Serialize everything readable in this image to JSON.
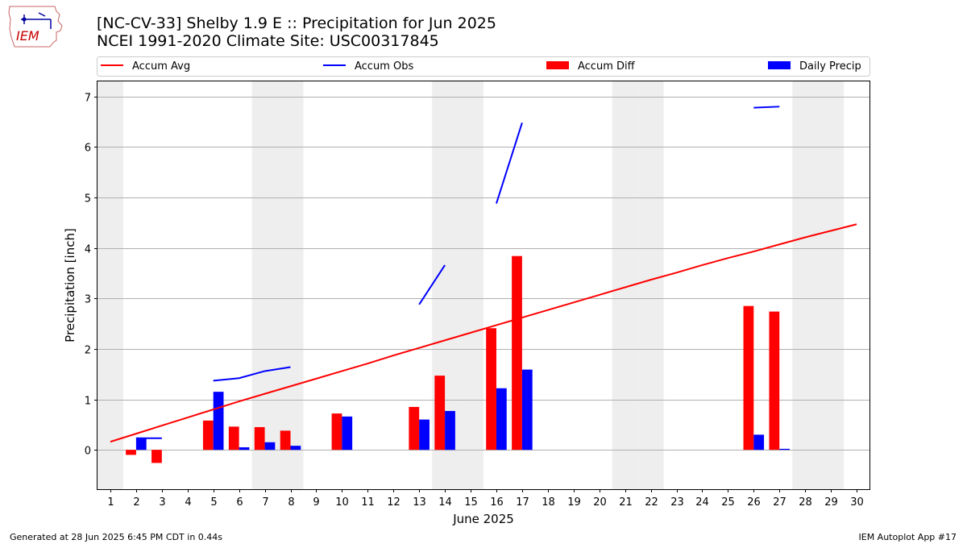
{
  "header": {
    "title_line1": "[NC-CV-33] Shelby 1.9 E :: Precipitation for Jun 2025",
    "title_line2": "NCEI 1991-2020 Climate Site: USC00317845",
    "logo_text": "IEM"
  },
  "footer": {
    "generated": "Generated at 28 Jun 2025 6:45 PM CDT in 0.44s",
    "app": "IEM Autoplot App #17"
  },
  "colors": {
    "avg": "#ff0000",
    "obs": "#0000ff",
    "diff": "#ff0000",
    "daily": "#0000ff",
    "weekend": "#eeeeee",
    "grid": "#b0b0b0"
  },
  "chart_data": {
    "type": "bar",
    "xlabel": "June 2025",
    "ylabel": "Precipitation [inch]",
    "xlim": [
      0.5,
      30.5
    ],
    "ylim": [
      -0.78,
      7.3
    ],
    "x_ticks": [
      1,
      2,
      3,
      4,
      5,
      6,
      7,
      8,
      9,
      10,
      11,
      12,
      13,
      14,
      15,
      16,
      17,
      18,
      19,
      20,
      21,
      22,
      23,
      24,
      25,
      26,
      27,
      28,
      29,
      30
    ],
    "y_ticks": [
      0,
      1,
      2,
      3,
      4,
      5,
      6,
      7
    ],
    "grid": "horizontal",
    "legend_position": "top",
    "weekend_days": [
      1,
      7,
      8,
      14,
      15,
      21,
      22,
      28,
      29
    ],
    "series": [
      {
        "name": "Accum Avg",
        "kind": "line",
        "x": [
          1,
          2,
          3,
          4,
          5,
          6,
          7,
          8,
          9,
          10,
          11,
          12,
          13,
          14,
          15,
          16,
          17,
          18,
          19,
          20,
          21,
          22,
          23,
          24,
          25,
          26,
          27,
          28,
          29,
          30
        ],
        "values": [
          0.16,
          0.32,
          0.48,
          0.64,
          0.8,
          0.96,
          1.11,
          1.26,
          1.41,
          1.56,
          1.71,
          1.87,
          2.02,
          2.17,
          2.32,
          2.47,
          2.62,
          2.77,
          2.92,
          3.07,
          3.22,
          3.37,
          3.51,
          3.66,
          3.8,
          3.93,
          4.07,
          4.21,
          4.34,
          4.47
        ]
      },
      {
        "name": "Accum Obs",
        "kind": "line",
        "segments": [
          {
            "x": [
              2,
              3
            ],
            "values": [
              0.23,
              0.23
            ]
          },
          {
            "x": [
              5,
              6,
              7,
              8
            ],
            "values": [
              1.37,
              1.42,
              1.56,
              1.64
            ]
          },
          {
            "x": [
              13,
              14
            ],
            "values": [
              2.88,
              3.66
            ]
          },
          {
            "x": [
              16,
              17
            ],
            "values": [
              4.88,
              6.48
            ]
          },
          {
            "x": [
              26,
              27
            ],
            "values": [
              6.78,
              6.8
            ]
          }
        ]
      },
      {
        "name": "Accum Diff",
        "kind": "bar",
        "x": [
          2,
          3,
          5,
          6,
          7,
          8,
          10,
          13,
          14,
          16,
          17,
          26,
          27
        ],
        "values": [
          -0.1,
          -0.26,
          0.58,
          0.46,
          0.45,
          0.38,
          0.72,
          0.85,
          1.47,
          2.41,
          3.84,
          2.85,
          2.74
        ]
      },
      {
        "name": "Daily Precip",
        "kind": "bar",
        "x": [
          2,
          5,
          6,
          7,
          8,
          10,
          13,
          14,
          16,
          17,
          26,
          27
        ],
        "values": [
          0.23,
          1.15,
          0.05,
          0.15,
          0.08,
          0.66,
          0.6,
          0.77,
          1.22,
          1.59,
          0.3,
          0.02
        ]
      }
    ]
  }
}
